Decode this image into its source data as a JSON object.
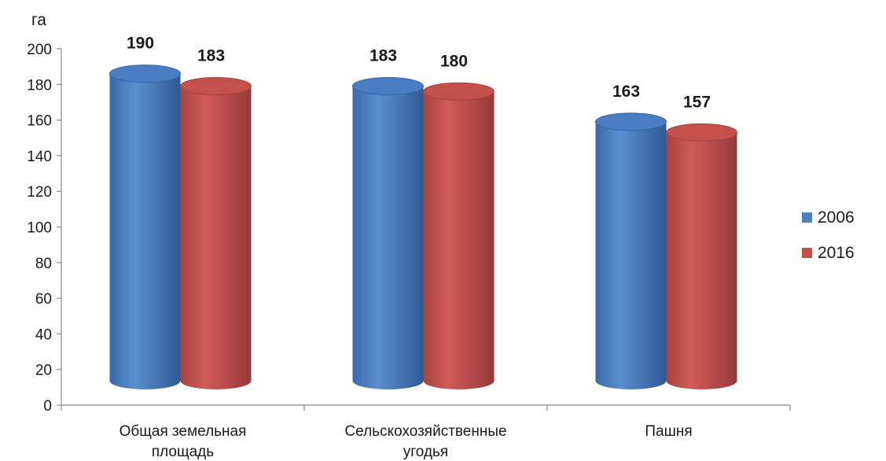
{
  "chart_data": {
    "type": "bar",
    "unit_label": "га",
    "categories": [
      [
        "Общая земельная",
        "площадь"
      ],
      [
        "Сельскохозяйственные",
        "угодья"
      ],
      [
        "Пашня"
      ]
    ],
    "series": [
      {
        "name": "2006",
        "color": "#4F81BD",
        "values": [
          190,
          183,
          163
        ]
      },
      {
        "name": "2016",
        "color": "#C0504D",
        "values": [
          183,
          180,
          157
        ]
      }
    ],
    "ylim": [
      0,
      200
    ],
    "yticks": [
      0,
      20,
      40,
      60,
      80,
      100,
      120,
      140,
      160,
      180,
      200
    ],
    "legend_position": "right"
  }
}
